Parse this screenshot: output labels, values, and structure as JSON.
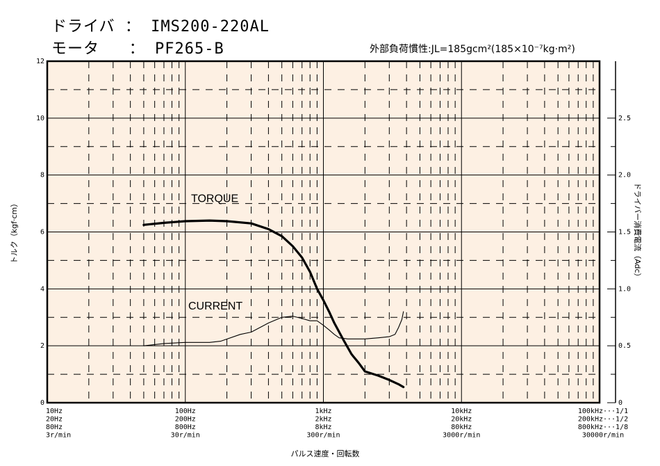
{
  "header": {
    "driver_label": "ドライバ",
    "driver_value": "IMS200-220AL",
    "motor_label": "モータ",
    "motor_value": "PF265-B",
    "separator": "：",
    "inertia_prefix": "外部負荷慣性:",
    "inertia_value": "JL=185gcm²(185×10⁻⁷kg·m²)"
  },
  "colors": {
    "plot_background": "#fdf0e3",
    "line": "#000000"
  },
  "chart_data": {
    "type": "line",
    "xscale": "log",
    "x_unit": "Hz",
    "xlim": [
      10,
      100000
    ],
    "ylim_left": [
      0,
      12
    ],
    "ylim_right": [
      0,
      3
    ],
    "ylabel_left": "トルク（kgf·cm）",
    "ylabel_right": "ドライバー消費電流（Adc）",
    "xlabel": "パルス速度・回転数",
    "left_ticks": [
      "0",
      "2",
      "4",
      "6",
      "8",
      "10",
      "12"
    ],
    "right_ticks": [
      "0",
      "0.5",
      "1.0",
      "1.5",
      "2.0",
      "2.5"
    ],
    "x_tick_groups": [
      {
        "x": 10,
        "lines": [
          "10Hz",
          "20Hz",
          "80Hz",
          "3r/min"
        ]
      },
      {
        "x": 100,
        "lines": [
          "100Hz",
          "200Hz",
          "800Hz",
          "30r/min"
        ]
      },
      {
        "x": 1000,
        "lines": [
          "1kHz",
          "2kHz",
          "8kHz",
          "300r/min"
        ]
      },
      {
        "x": 10000,
        "lines": [
          "10kHz",
          "20kHz",
          "80kHz",
          "3000r/min"
        ]
      },
      {
        "x": 100000,
        "lines": [
          "100kHz···1/1",
          "200kHz···1/2",
          "800kHz···1/8",
          "30000r/min"
        ]
      }
    ],
    "grid": true,
    "series": [
      {
        "name": "TORQUE",
        "axis": "left",
        "points": [
          [
            50,
            6.25
          ],
          [
            70,
            6.32
          ],
          [
            100,
            6.38
          ],
          [
            150,
            6.4
          ],
          [
            200,
            6.38
          ],
          [
            300,
            6.3
          ],
          [
            400,
            6.1
          ],
          [
            500,
            5.85
          ],
          [
            600,
            5.5
          ],
          [
            700,
            5.1
          ],
          [
            800,
            4.6
          ],
          [
            900,
            4.0
          ],
          [
            1000,
            3.6
          ],
          [
            1100,
            3.2
          ],
          [
            1200,
            2.8
          ],
          [
            1400,
            2.2
          ],
          [
            1600,
            1.7
          ],
          [
            1800,
            1.4
          ],
          [
            2000,
            1.1
          ],
          [
            2500,
            0.95
          ],
          [
            3000,
            0.8
          ],
          [
            3500,
            0.65
          ],
          [
            3800,
            0.55
          ]
        ]
      },
      {
        "name": "CURRENT",
        "axis": "right",
        "points": [
          [
            50,
            0.5
          ],
          [
            70,
            0.52
          ],
          [
            100,
            0.53
          ],
          [
            150,
            0.53
          ],
          [
            180,
            0.54
          ],
          [
            250,
            0.6
          ],
          [
            300,
            0.62
          ],
          [
            400,
            0.7
          ],
          [
            500,
            0.75
          ],
          [
            600,
            0.76
          ],
          [
            700,
            0.74
          ],
          [
            800,
            0.72
          ],
          [
            900,
            0.72
          ],
          [
            1000,
            0.68
          ],
          [
            1100,
            0.64
          ],
          [
            1200,
            0.6
          ],
          [
            1300,
            0.57
          ],
          [
            1500,
            0.56
          ],
          [
            2000,
            0.56
          ],
          [
            2500,
            0.57
          ],
          [
            3000,
            0.58
          ],
          [
            3300,
            0.6
          ],
          [
            3500,
            0.66
          ],
          [
            3700,
            0.73
          ],
          [
            3800,
            0.8
          ]
        ]
      }
    ]
  }
}
